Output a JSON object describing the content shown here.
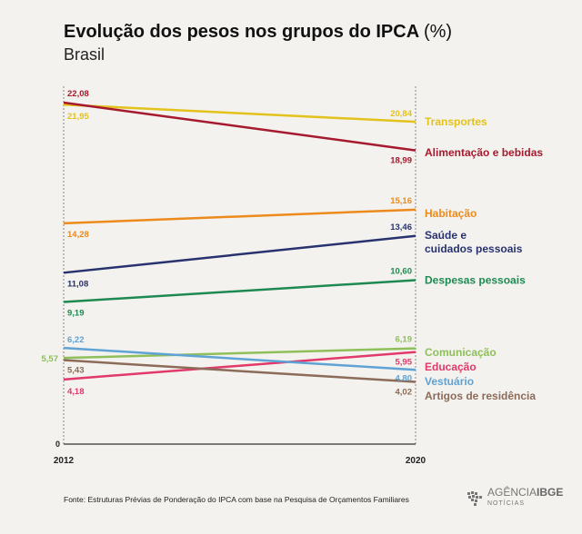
{
  "header": {
    "title": "Evolução dos pesos nos grupos do IPCA",
    "unit": "(%)",
    "subtitle": "Brasil"
  },
  "footer": {
    "source": "Fonte: Estruturas Prévias de Ponderação do IPCA com base na Pesquisa de Orçamentos Familiares",
    "logo_main": "AGÊNCIA",
    "logo_bold": "IBGE",
    "logo_sub": "NOTÍCIAS"
  },
  "chart_data": {
    "type": "line",
    "title": "Evolução dos pesos nos grupos do IPCA (%)",
    "subtitle": "Brasil",
    "x": [
      "2012",
      "2020"
    ],
    "ylim": [
      0,
      22.08
    ],
    "y_tick_labels": [
      "0"
    ],
    "grid": false,
    "series": [
      {
        "name": "Transportes",
        "values": [
          21.95,
          20.84
        ],
        "labels": [
          "21,95",
          "20,84"
        ],
        "color": "#e2c21b"
      },
      {
        "name": "Alimentação e bebidas",
        "values": [
          22.08,
          18.99
        ],
        "labels": [
          "22,08",
          "18,99"
        ],
        "color": "#a6192e"
      },
      {
        "name": "Habitação",
        "values": [
          14.28,
          15.16
        ],
        "labels": [
          "14,28",
          "15,16"
        ],
        "color": "#ec8a1c"
      },
      {
        "name": "Saúde e cuidados pessoais",
        "name_lines": [
          "Saúde e",
          "cuidados pessoais"
        ],
        "values": [
          11.08,
          13.46
        ],
        "labels": [
          "11,08",
          "13,46"
        ],
        "color": "#28326f"
      },
      {
        "name": "Despesas pessoais",
        "values": [
          9.19,
          10.6
        ],
        "labels": [
          "9,19",
          "10,60"
        ],
        "color": "#1e8a52"
      },
      {
        "name": "Comunicação",
        "values": [
          5.57,
          6.19
        ],
        "labels": [
          "5,57",
          "6,19"
        ],
        "color": "#8fbf5a"
      },
      {
        "name": "Educação",
        "values": [
          4.18,
          5.95
        ],
        "labels": [
          "4,18",
          "5,95"
        ],
        "color": "#e0396a"
      },
      {
        "name": "Vestuário",
        "values": [
          6.22,
          4.8
        ],
        "labels": [
          "6,22",
          "4,80"
        ],
        "color": "#5fa3d6"
      },
      {
        "name": "Artigos de residência",
        "values": [
          5.43,
          4.02
        ],
        "labels": [
          "5,43",
          "4,02"
        ],
        "color": "#8c6b59"
      }
    ]
  }
}
